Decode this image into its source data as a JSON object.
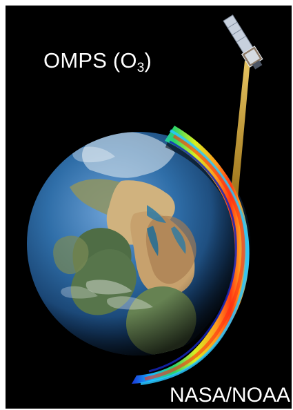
{
  "title": {
    "main": "OMPS (O",
    "subscript": "3",
    "close": ")"
  },
  "credit": "NASA/NOAA",
  "colors": {
    "background": "#000000",
    "frame": "#ffffff",
    "text": "#ffffff",
    "ocean": "#1f4f86",
    "land": "#c8ab7a",
    "beam": "#d8a53a",
    "spectrum": [
      "#1a35d8",
      "#17b8ff",
      "#2ad46a",
      "#d9ef20",
      "#ff9a1e",
      "#ff3a12"
    ]
  },
  "icons": {
    "satellite": "satellite-icon",
    "earth": "earth-globe"
  }
}
